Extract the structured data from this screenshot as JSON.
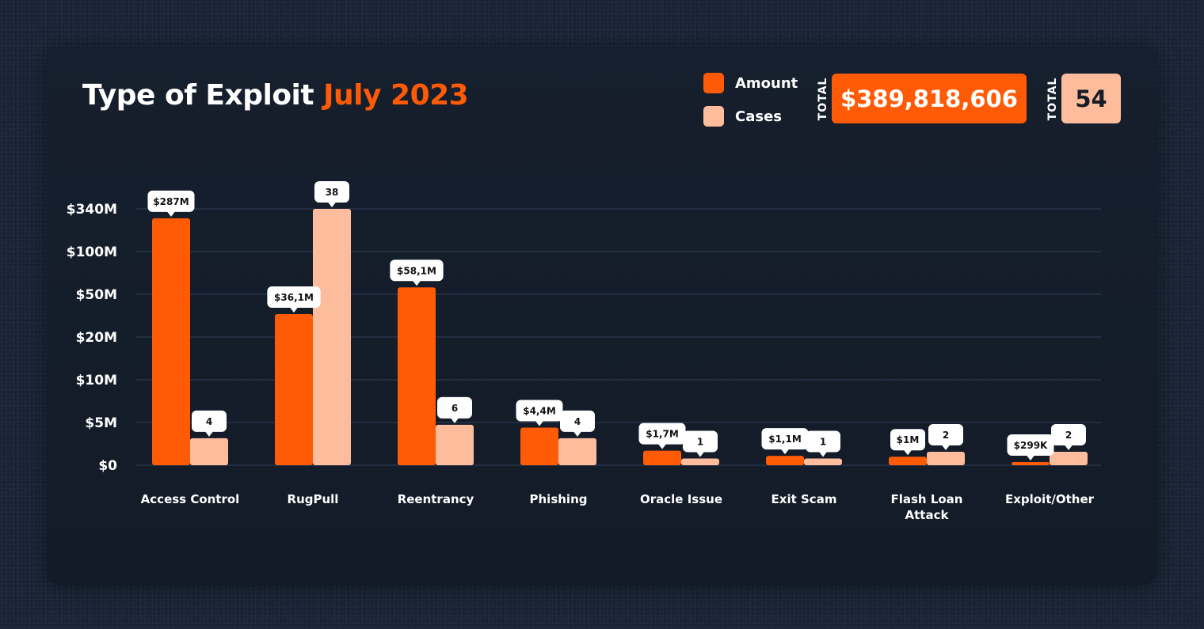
{
  "header": {
    "title_main": "Type of Exploit",
    "title_accent": "July 2023"
  },
  "legend": [
    {
      "label": "Amount",
      "color": "#ff5a05"
    },
    {
      "label": "Cases",
      "color": "#fdbd9d"
    }
  ],
  "totals": {
    "amount_caption": "TOTAL",
    "amount_value": "$389,818,606",
    "cases_caption": "TOTAL",
    "cases_value": "54"
  },
  "colors": {
    "amount": "#ff5a05",
    "cases": "#fdbd9d",
    "grid": "#2b3850",
    "label_bg": "#ffffff",
    "label_text": "#111111"
  },
  "chart_data": {
    "type": "bar",
    "title": "Type of Exploit July 2023",
    "categories": [
      "Access Control",
      "RugPull",
      "Reentrancy",
      "Phishing",
      "Oracle Issue",
      "Exit Scam",
      "Flash Loan Attack",
      "Exploit/Other"
    ],
    "category_lines": [
      [
        "Access Control"
      ],
      [
        "RugPull"
      ],
      [
        "Reentrancy"
      ],
      [
        "Phishing"
      ],
      [
        "Oracle Issue"
      ],
      [
        "Exit Scam"
      ],
      [
        "Flash Loan",
        "Attack"
      ],
      [
        "Exploit/Other"
      ]
    ],
    "yticks": [
      "$0",
      "$5M",
      "$10M",
      "$20M",
      "$50M",
      "$100M",
      "$340M"
    ],
    "y_scale": "piecewise",
    "grid": true,
    "legend_position": "top-right",
    "series": [
      {
        "name": "Amount",
        "values": [
          287000000,
          36100000,
          58100000,
          4400000,
          1700000,
          1100000,
          1000000,
          299000
        ],
        "labels": [
          "$287M",
          "$36,1M",
          "$58,1M",
          "$4,4M",
          "$1,7M",
          "$1,1M",
          "$1M",
          "$299K"
        ]
      },
      {
        "name": "Cases",
        "values": [
          4,
          38,
          6,
          4,
          1,
          1,
          2,
          2
        ],
        "labels": [
          "4",
          "38",
          "6",
          "4",
          "1",
          "1",
          "2",
          "2"
        ]
      }
    ]
  }
}
